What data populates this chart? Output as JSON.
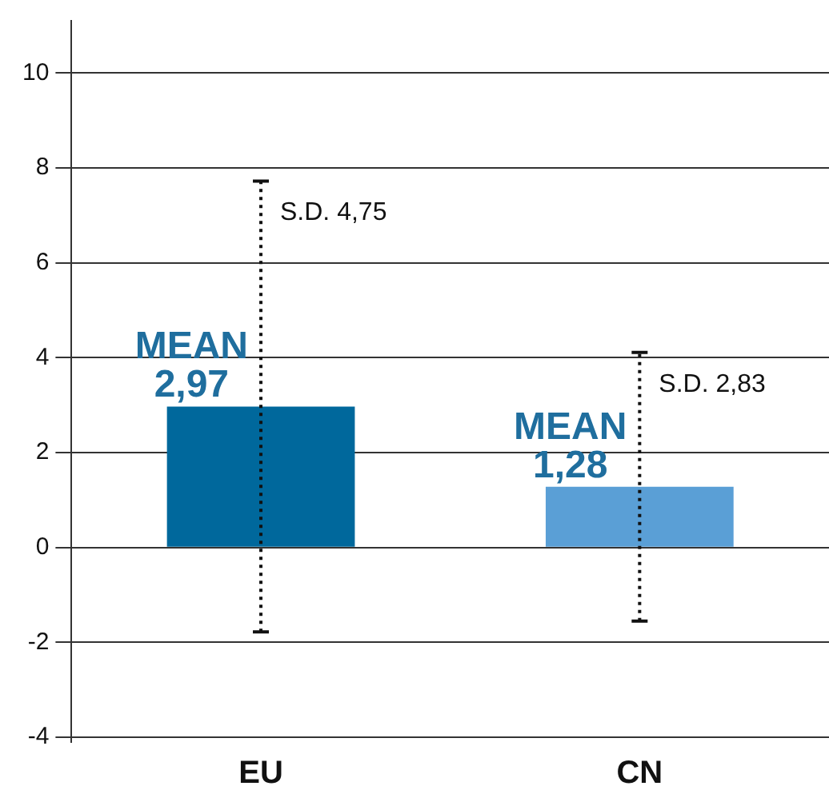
{
  "chart_data": {
    "type": "bar",
    "categories": [
      "EU",
      "CN"
    ],
    "values": [
      2.97,
      1.28
    ],
    "colors": [
      "#00689c",
      "#5a9fd6"
    ],
    "errors": [
      4.75,
      2.83
    ],
    "value_labels": [
      "MEAN\n2,97",
      "MEAN\n1,28"
    ],
    "annotations": [
      {
        "text": "S.D. 4,75",
        "x": "EU",
        "y": 7.72
      },
      {
        "text": "S.D. 2,83",
        "x": "CN",
        "y": 4.11
      }
    ],
    "ylim": [
      -4.1,
      11.1
    ],
    "yticks": [
      -4,
      -2,
      0,
      2,
      4,
      6,
      8,
      10
    ],
    "grid": "y",
    "legend": false
  }
}
